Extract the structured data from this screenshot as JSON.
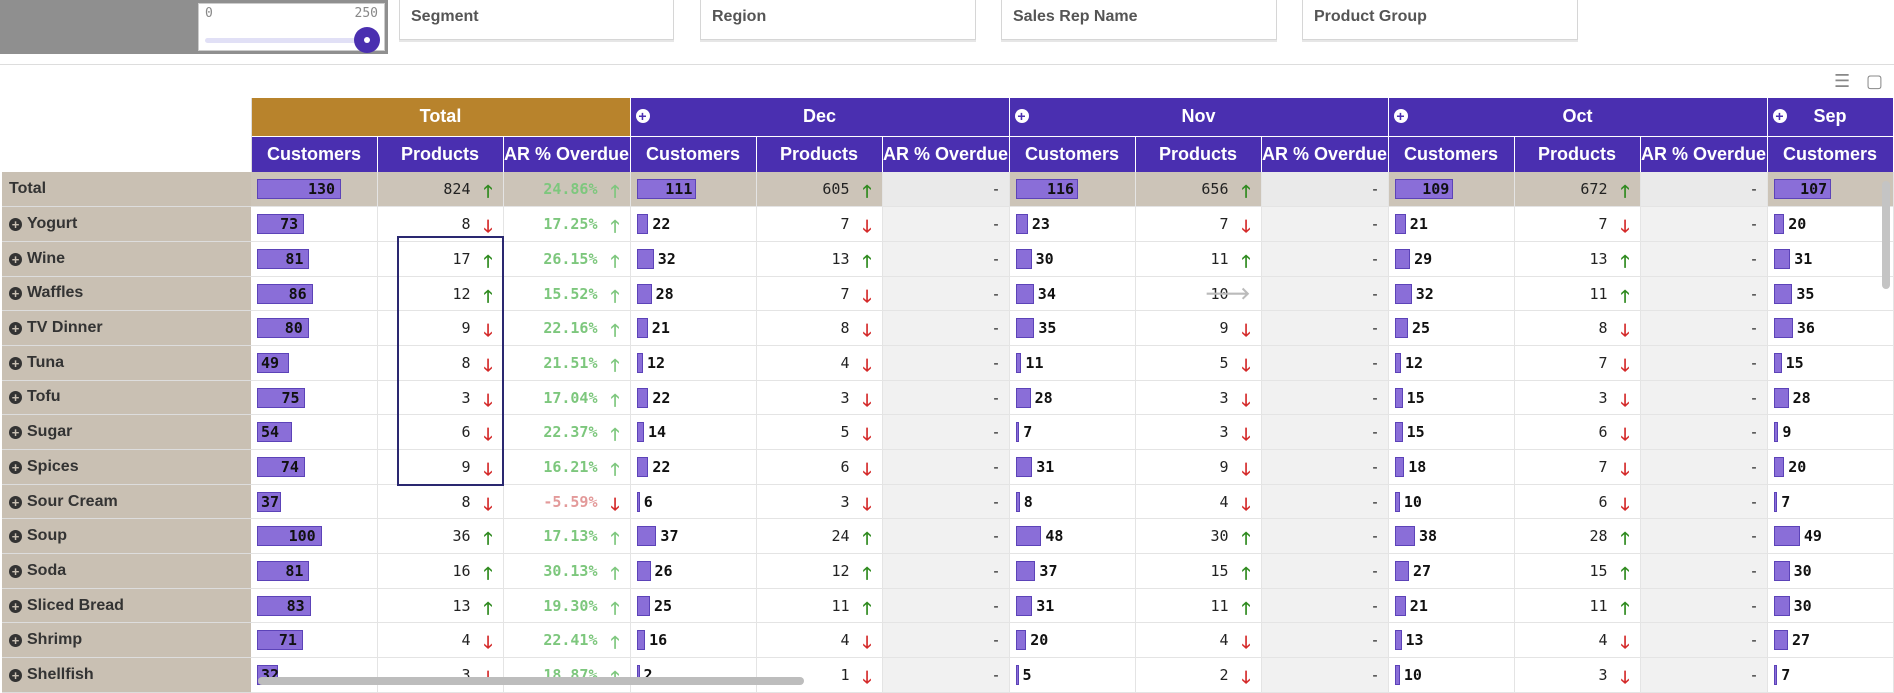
{
  "slider": {
    "min": "0",
    "max": "250"
  },
  "filters": [
    "Segment",
    "Region",
    "Sales Rep Name",
    "Product Group"
  ],
  "toolbar": {
    "list_icon": "list-icon",
    "export_icon": "export-excel-icon"
  },
  "columns": {
    "groups": [
      "Total",
      "Dec",
      "Nov",
      "Oct",
      "Sep"
    ],
    "measures": [
      "Customers",
      "Products",
      "AR % Overdue"
    ],
    "ar_empty": "-"
  },
  "colors": {
    "header": "#4a2fb0",
    "total_header": "#b8832c",
    "row_label_bg": "#c9c0b3",
    "bar": "#8a6ed8",
    "up": "#2e8a1e",
    "down": "#d42a2a"
  },
  "rows": [
    {
      "label": "Total",
      "total": {
        "c": 130,
        "p": "824",
        "pt": "up",
        "ar": "24.86%",
        "art": "up"
      },
      "dec": {
        "c": 111,
        "p": "605",
        "pt": "up"
      },
      "nov": {
        "c": 116,
        "p": "656",
        "pt": "up"
      },
      "oct": {
        "c": 109,
        "p": "672",
        "pt": "up"
      },
      "sep": {
        "c": 107
      }
    },
    {
      "label": "Yogurt",
      "total": {
        "c": 73,
        "p": "8",
        "pt": "down",
        "ar": "17.25%",
        "art": "up"
      },
      "dec": {
        "c": 22,
        "p": "7",
        "pt": "down"
      },
      "nov": {
        "c": 23,
        "p": "7",
        "pt": "down"
      },
      "oct": {
        "c": 21,
        "p": "7",
        "pt": "down"
      },
      "sep": {
        "c": 20
      }
    },
    {
      "label": "Wine",
      "total": {
        "c": 81,
        "p": "17",
        "pt": "up",
        "ar": "26.15%",
        "art": "up"
      },
      "dec": {
        "c": 32,
        "p": "13",
        "pt": "up"
      },
      "nov": {
        "c": 30,
        "p": "11",
        "pt": "up"
      },
      "oct": {
        "c": 29,
        "p": "13",
        "pt": "up"
      },
      "sep": {
        "c": 31
      }
    },
    {
      "label": "Waffles",
      "total": {
        "c": 86,
        "p": "12",
        "pt": "up",
        "ar": "15.52%",
        "art": "up"
      },
      "dec": {
        "c": 28,
        "p": "7",
        "pt": "down"
      },
      "nov": {
        "c": 34,
        "p": "10",
        "pt": "flat"
      },
      "oct": {
        "c": 32,
        "p": "11",
        "pt": "up"
      },
      "sep": {
        "c": 35
      }
    },
    {
      "label": "TV Dinner",
      "total": {
        "c": 80,
        "p": "9",
        "pt": "down",
        "ar": "22.16%",
        "art": "up"
      },
      "dec": {
        "c": 21,
        "p": "8",
        "pt": "down"
      },
      "nov": {
        "c": 35,
        "p": "9",
        "pt": "down"
      },
      "oct": {
        "c": 25,
        "p": "8",
        "pt": "down"
      },
      "sep": {
        "c": 36
      }
    },
    {
      "label": "Tuna",
      "total": {
        "c": 49,
        "p": "8",
        "pt": "down",
        "ar": "21.51%",
        "art": "up"
      },
      "dec": {
        "c": 12,
        "p": "4",
        "pt": "down"
      },
      "nov": {
        "c": 11,
        "p": "5",
        "pt": "down"
      },
      "oct": {
        "c": 12,
        "p": "7",
        "pt": "down"
      },
      "sep": {
        "c": 15
      }
    },
    {
      "label": "Tofu",
      "total": {
        "c": 75,
        "p": "3",
        "pt": "down",
        "ar": "17.04%",
        "art": "up"
      },
      "dec": {
        "c": 22,
        "p": "3",
        "pt": "down"
      },
      "nov": {
        "c": 28,
        "p": "3",
        "pt": "down"
      },
      "oct": {
        "c": 15,
        "p": "3",
        "pt": "down"
      },
      "sep": {
        "c": 28
      }
    },
    {
      "label": "Sugar",
      "total": {
        "c": 54,
        "p": "6",
        "pt": "down",
        "ar": "22.37%",
        "art": "up"
      },
      "dec": {
        "c": 14,
        "p": "5",
        "pt": "down"
      },
      "nov": {
        "c": 7,
        "p": "3",
        "pt": "down"
      },
      "oct": {
        "c": 15,
        "p": "6",
        "pt": "down"
      },
      "sep": {
        "c": 9
      }
    },
    {
      "label": "Spices",
      "total": {
        "c": 74,
        "p": "9",
        "pt": "down",
        "ar": "16.21%",
        "art": "up"
      },
      "dec": {
        "c": 22,
        "p": "6",
        "pt": "down"
      },
      "nov": {
        "c": 31,
        "p": "9",
        "pt": "down"
      },
      "oct": {
        "c": 18,
        "p": "7",
        "pt": "down"
      },
      "sep": {
        "c": 20
      }
    },
    {
      "label": "Sour Cream",
      "total": {
        "c": 37,
        "p": "8",
        "pt": "down",
        "ar": "-5.59%",
        "art": "down"
      },
      "dec": {
        "c": 6,
        "p": "3",
        "pt": "down"
      },
      "nov": {
        "c": 8,
        "p": "4",
        "pt": "down"
      },
      "oct": {
        "c": 10,
        "p": "6",
        "pt": "down"
      },
      "sep": {
        "c": 7
      }
    },
    {
      "label": "Soup",
      "total": {
        "c": 100,
        "p": "36",
        "pt": "up",
        "ar": "17.13%",
        "art": "up"
      },
      "dec": {
        "c": 37,
        "p": "24",
        "pt": "up"
      },
      "nov": {
        "c": 48,
        "p": "30",
        "pt": "up"
      },
      "oct": {
        "c": 38,
        "p": "28",
        "pt": "up"
      },
      "sep": {
        "c": 49
      }
    },
    {
      "label": "Soda",
      "total": {
        "c": 81,
        "p": "16",
        "pt": "up",
        "ar": "30.13%",
        "art": "up"
      },
      "dec": {
        "c": 26,
        "p": "12",
        "pt": "up"
      },
      "nov": {
        "c": 37,
        "p": "15",
        "pt": "up"
      },
      "oct": {
        "c": 27,
        "p": "15",
        "pt": "up"
      },
      "sep": {
        "c": 30
      }
    },
    {
      "label": "Sliced Bread",
      "total": {
        "c": 83,
        "p": "13",
        "pt": "up",
        "ar": "19.30%",
        "art": "up"
      },
      "dec": {
        "c": 25,
        "p": "11",
        "pt": "up"
      },
      "nov": {
        "c": 31,
        "p": "11",
        "pt": "up"
      },
      "oct": {
        "c": 21,
        "p": "11",
        "pt": "up"
      },
      "sep": {
        "c": 30
      }
    },
    {
      "label": "Shrimp",
      "total": {
        "c": 71,
        "p": "4",
        "pt": "down",
        "ar": "22.41%",
        "art": "up"
      },
      "dec": {
        "c": 16,
        "p": "4",
        "pt": "down"
      },
      "nov": {
        "c": 20,
        "p": "4",
        "pt": "down"
      },
      "oct": {
        "c": 13,
        "p": "4",
        "pt": "down"
      },
      "sep": {
        "c": 27
      }
    },
    {
      "label": "Shellfish",
      "total": {
        "c": 32,
        "p": "3",
        "pt": "down",
        "ar": "18.87%",
        "art": "up"
      },
      "dec": {
        "c": 2,
        "p": "1",
        "pt": "down"
      },
      "nov": {
        "c": 5,
        "p": "2",
        "pt": "down"
      },
      "oct": {
        "c": 10,
        "p": "3",
        "pt": "down"
      },
      "sep": {
        "c": 7
      }
    }
  ]
}
